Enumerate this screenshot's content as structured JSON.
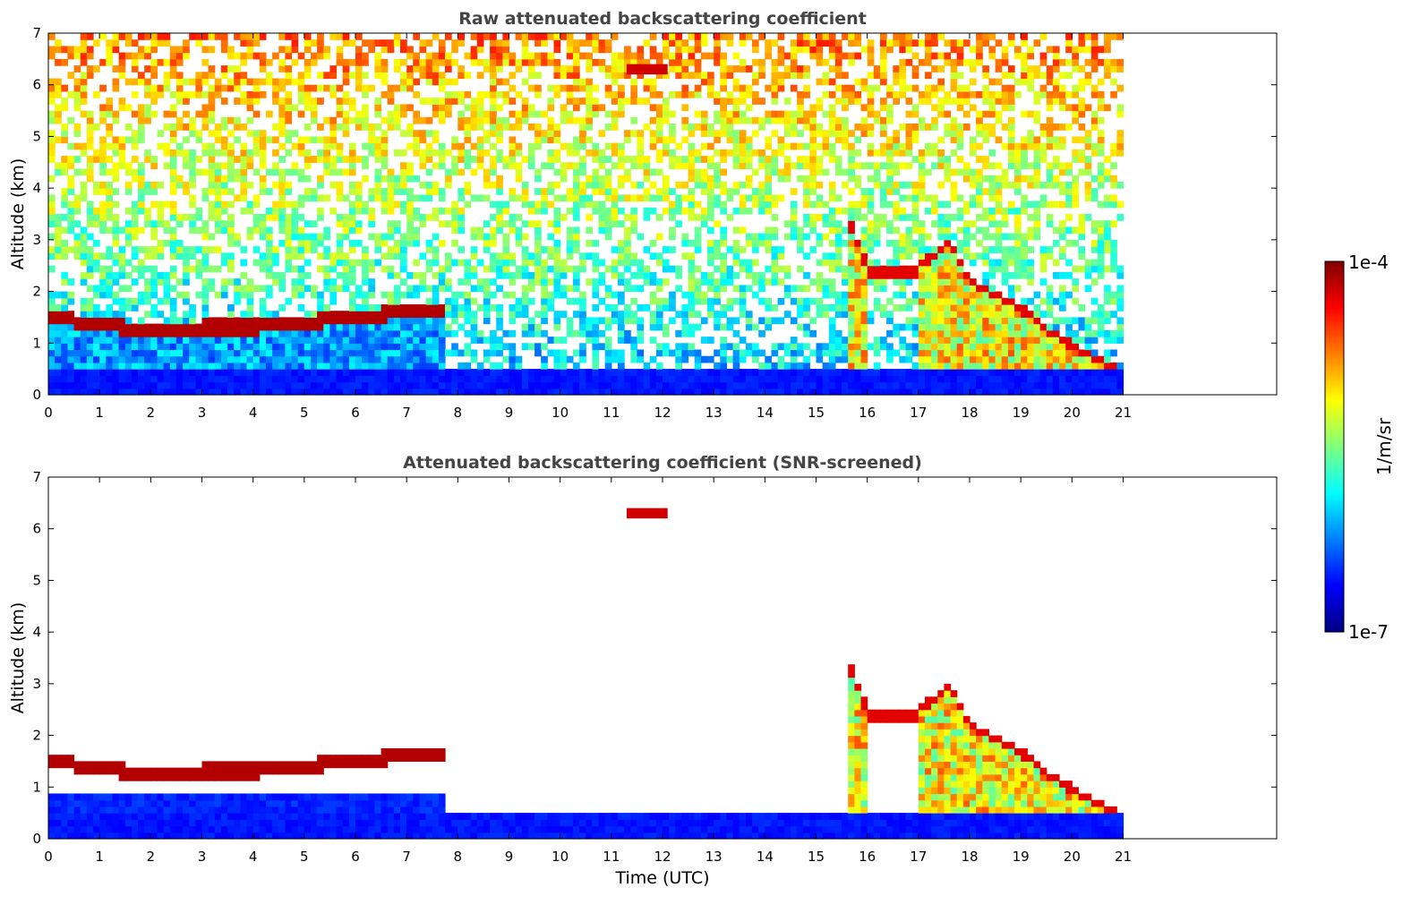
{
  "chart_data": [
    {
      "type": "heatmap",
      "title": "Raw attenuated backscattering coefficient",
      "xlabel": "",
      "ylabel": "Altitude (km)",
      "xlim": [
        0,
        24
      ],
      "ylim": [
        0,
        7
      ],
      "xticks": [
        0,
        1,
        2,
        3,
        4,
        5,
        6,
        7,
        8,
        9,
        10,
        11,
        12,
        13,
        14,
        15,
        16,
        17,
        18,
        19,
        20,
        21
      ],
      "yticks": [
        0,
        1,
        2,
        3,
        4,
        5,
        6,
        7
      ],
      "data_end_time": 21,
      "screened": false,
      "features": {
        "boundary_layer_top_km": [
          [
            0,
            1.5
          ],
          [
            1,
            1.35
          ],
          [
            2,
            1.25
          ],
          [
            3,
            1.3
          ],
          [
            4,
            1.3
          ],
          [
            5,
            1.4
          ],
          [
            6,
            1.5
          ],
          [
            7,
            1.6
          ],
          [
            7.6,
            1.62
          ]
        ],
        "cloud_layers": [
          {
            "name": "high cloud",
            "t": [
              11.3,
              12.1
            ],
            "alt_km": [
              6.2,
              6.4
            ]
          },
          {
            "name": "cloud base",
            "t": [
              15.7,
              20.9
            ],
            "alt_km_start": 3.3,
            "alt_km_end": 0.3
          }
        ]
      }
    },
    {
      "type": "heatmap",
      "title": "Attenuated backscattering coefficient (SNR-screened)",
      "xlabel": "Time (UTC)",
      "ylabel": "Altitude (km)",
      "xlim": [
        0,
        24
      ],
      "ylim": [
        0,
        7
      ],
      "xticks": [
        0,
        1,
        2,
        3,
        4,
        5,
        6,
        7,
        8,
        9,
        10,
        11,
        12,
        13,
        14,
        15,
        16,
        17,
        18,
        19,
        20,
        21
      ],
      "yticks": [
        0,
        1,
        2,
        3,
        4,
        5,
        6,
        7
      ],
      "data_end_time": 21,
      "screened": true
    }
  ],
  "colorbar": {
    "max_label": "1e-4",
    "min_label": "1e-7",
    "unit_label": "1/m/sr",
    "colormap": "jet"
  },
  "colors": {
    "title": "#444444",
    "jet_stops": [
      "#00007f",
      "#0000ff",
      "#007fff",
      "#00ffff",
      "#7fff7f",
      "#ffff00",
      "#ff7f00",
      "#ff0000",
      "#7f0000"
    ]
  }
}
